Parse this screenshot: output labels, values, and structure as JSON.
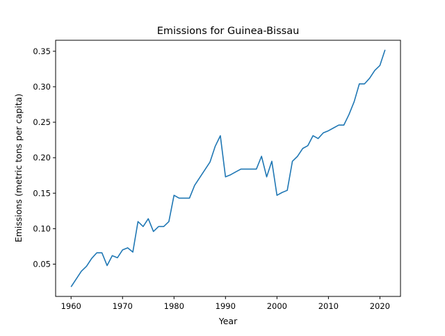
{
  "chart_data": {
    "type": "line",
    "title": "Emissions for Guinea-Bissau",
    "xlabel": "Year",
    "ylabel": "Emissions (metric tons per capita)",
    "xlim": [
      1957,
      2024
    ],
    "ylim": [
      0.0045,
      0.3655
    ],
    "xticks": [
      1960,
      1970,
      1980,
      1990,
      2000,
      2010,
      2020
    ],
    "yticks": [
      0.05,
      0.1,
      0.15,
      0.2,
      0.25,
      0.3,
      0.35
    ],
    "ytick_labels": [
      "0.05",
      "0.10",
      "0.15",
      "0.20",
      "0.25",
      "0.30",
      "0.35"
    ],
    "grid": false,
    "line_color": "#1f77b4",
    "series": [
      {
        "x": [
          1960,
          1961,
          1962,
          1963,
          1964,
          1965,
          1966,
          1967,
          1968,
          1969,
          1970,
          1971,
          1972,
          1973,
          1974,
          1975,
          1976,
          1977,
          1978,
          1979,
          1980,
          1981,
          1982,
          1983,
          1984,
          1985,
          1986,
          1987,
          1988,
          1989,
          1990,
          1991,
          1992,
          1993,
          1994,
          1995,
          1996,
          1997,
          1998,
          1999,
          2000,
          2001,
          2002,
          2003,
          2004,
          2005,
          2006,
          2007,
          2008,
          2009,
          2010,
          2011,
          2012,
          2013,
          2014,
          2015,
          2016,
          2017,
          2018,
          2019,
          2020,
          2021
        ],
        "values": [
          0.018,
          0.029,
          0.04,
          0.047,
          0.058,
          0.066,
          0.066,
          0.048,
          0.062,
          0.059,
          0.07,
          0.073,
          0.067,
          0.11,
          0.103,
          0.114,
          0.096,
          0.103,
          0.103,
          0.11,
          0.147,
          0.143,
          0.143,
          0.143,
          0.161,
          0.172,
          0.183,
          0.194,
          0.216,
          0.231,
          0.173,
          0.176,
          0.18,
          0.184,
          0.184,
          0.184,
          0.184,
          0.202,
          0.173,
          0.195,
          0.147,
          0.151,
          0.154,
          0.195,
          0.202,
          0.213,
          0.217,
          0.231,
          0.227,
          0.235,
          0.238,
          0.242,
          0.246,
          0.246,
          0.261,
          0.279,
          0.304,
          0.304,
          0.312,
          0.323,
          0.33,
          0.352
        ]
      }
    ]
  }
}
